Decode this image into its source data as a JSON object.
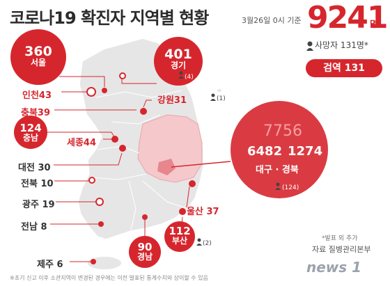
{
  "header": {
    "title": "코로나19 확진자 지역별 현황",
    "date": "3월26일 0시 기준",
    "total": "9241",
    "total_unit": "명",
    "deaths": "사망자 131명*",
    "quarantine": "검역 131"
  },
  "regions": {
    "seoul": {
      "count": "360",
      "name": "서울"
    },
    "gyeonggi": {
      "count": "401",
      "name": "경기",
      "deaths": "(4)"
    },
    "incheon": {
      "label": "인천43"
    },
    "gangwon": {
      "label": "강원31",
      "deaths": "(1)"
    },
    "chungbuk": {
      "label": "충북39"
    },
    "chungnam": {
      "count": "124",
      "name": "충남"
    },
    "sejong": {
      "label": "세종44"
    },
    "daejeon": {
      "label": "대전 30"
    },
    "jeonbuk": {
      "label": "전북 10"
    },
    "gwangju": {
      "label": "광주 19"
    },
    "jeonnam": {
      "label": "전남 8"
    },
    "jeju": {
      "label": "제주 6"
    },
    "daegu_gyeongbuk": {
      "total": "7756",
      "daegu": "6482",
      "gyeongbuk": "1274",
      "label": "대구 · 경북",
      "deaths": "(124)"
    },
    "ulsan": {
      "label": "울산 37"
    },
    "busan": {
      "count": "112",
      "name": "부산",
      "deaths": "(2)"
    },
    "gyeongnam": {
      "count": "90",
      "name": "경남"
    }
  },
  "footer": {
    "note": "*발표 외 추가",
    "source": "자료 질병관리본부",
    "footnote": "※초기 신고 이후 소관지역이 변경된 경우에는 이전 발표된 통계수치와 상이할 수 있음",
    "logo": "news 1"
  },
  "colors": {
    "accent": "#d6262d",
    "map": "#e4e4e4",
    "highlight": "#f5c8cb"
  }
}
